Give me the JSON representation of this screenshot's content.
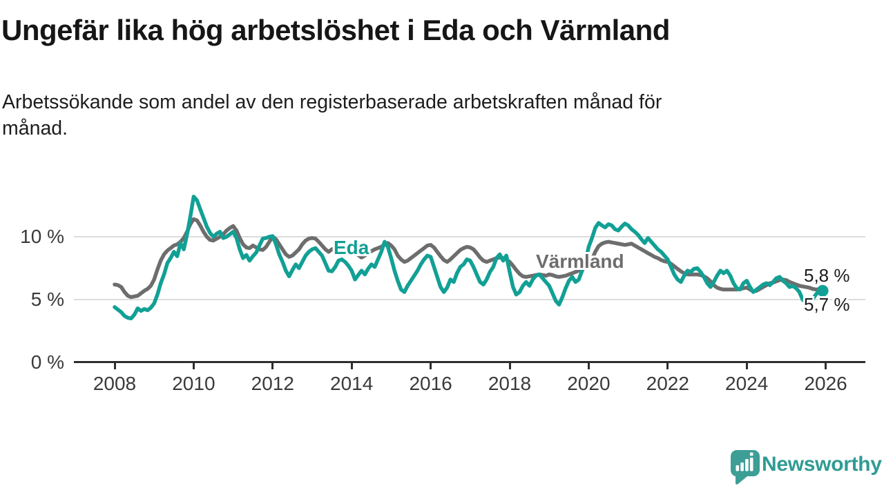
{
  "title": "Ungefär lika hög arbetslöshet i Eda och Värmland",
  "subtitle": {
    "line1": "Arbetssökande som andel av den registerbaserade arbetskraften månad för",
    "line2": "månad."
  },
  "branding": {
    "logo_text": "Newsworthy",
    "logo_icon": "bar-chart-speech-bubble",
    "logo_color": "#3d9e96",
    "text_color": "#2f9c93"
  },
  "colors": {
    "eda_line": "#12a095",
    "varmland_line": "#6d6d6d",
    "gridline": "#dcdcdc",
    "axis": "#2d2d2d",
    "text": "#1d1d1d"
  },
  "chart_data": {
    "type": "line",
    "title": "Ungefär lika hög arbetslöshet i Eda och Värmland",
    "unit": "%",
    "x_start_year": 2008,
    "points_per_year": 12,
    "x_end_label_month": "nov 2025",
    "ylim": [
      0,
      14
    ],
    "grid": "horizontal",
    "legend_position": "inline-labels",
    "x_ticks": [
      2008,
      2010,
      2012,
      2014,
      2016,
      2018,
      2020,
      2022,
      2024,
      2026
    ],
    "y_ticks": [
      {
        "value": 0,
        "label": "0 %"
      },
      {
        "value": 5,
        "label": "5 %"
      },
      {
        "value": 10,
        "label": "10 %"
      }
    ],
    "series": [
      {
        "name": "Värmland",
        "label_text": "Värmland",
        "color": "#6d6d6d",
        "endpoint_dot": false,
        "final_value": 5.8,
        "values": [
          6.2,
          6.15,
          6.0,
          5.6,
          5.3,
          5.2,
          5.25,
          5.3,
          5.5,
          5.7,
          5.85,
          6.1,
          6.6,
          7.4,
          8.1,
          8.6,
          8.9,
          9.1,
          9.3,
          9.4,
          9.6,
          9.9,
          10.4,
          11.0,
          11.4,
          11.3,
          10.9,
          10.4,
          10.0,
          9.75,
          9.7,
          9.85,
          10.0,
          10.2,
          10.5,
          10.7,
          10.85,
          10.5,
          9.9,
          9.4,
          9.15,
          9.1,
          9.3,
          9.15,
          9.0,
          8.95,
          9.2,
          9.6,
          10.0,
          9.8,
          9.4,
          9.0,
          8.6,
          8.4,
          8.5,
          8.75,
          9.0,
          9.4,
          9.7,
          9.85,
          9.9,
          9.85,
          9.6,
          9.3,
          9.0,
          8.8,
          9.0,
          9.1,
          8.85,
          8.7,
          8.8,
          8.9,
          9.0,
          8.8,
          8.55,
          8.35,
          8.5,
          8.7,
          8.85,
          9.0,
          9.1,
          9.2,
          9.4,
          9.5,
          9.3,
          9.0,
          8.5,
          8.2,
          8.0,
          8.1,
          8.3,
          8.5,
          8.7,
          8.9,
          9.1,
          9.3,
          9.35,
          9.15,
          8.8,
          8.45,
          8.15,
          8.0,
          8.2,
          8.45,
          8.7,
          8.95,
          9.1,
          9.2,
          9.15,
          9.0,
          8.7,
          8.35,
          8.1,
          8.0,
          8.1,
          8.2,
          8.3,
          8.35,
          8.3,
          8.2,
          8.0,
          7.7,
          7.35,
          7.05,
          6.85,
          6.8,
          6.85,
          6.9,
          6.95,
          7.0,
          6.95,
          6.9,
          7.0,
          6.95,
          6.85,
          6.8,
          6.85,
          6.9,
          7.0,
          7.1,
          7.2,
          7.3,
          7.4,
          7.55,
          7.8,
          8.2,
          8.8,
          9.25,
          9.45,
          9.55,
          9.6,
          9.55,
          9.5,
          9.45,
          9.4,
          9.35,
          9.4,
          9.45,
          9.3,
          9.15,
          9.0,
          8.85,
          8.7,
          8.55,
          8.4,
          8.3,
          8.15,
          8.05,
          8.0,
          7.85,
          7.65,
          7.45,
          7.25,
          7.1,
          7.0,
          7.0,
          7.0,
          7.0,
          6.95,
          6.85,
          6.7,
          6.45,
          6.15,
          5.95,
          5.85,
          5.8,
          5.8,
          5.8,
          5.8,
          5.8,
          5.85,
          5.9,
          5.95,
          5.8,
          5.65,
          5.7,
          5.85,
          6.0,
          6.15,
          6.3,
          6.35,
          6.45,
          6.55,
          6.6,
          6.55,
          6.4,
          6.3,
          6.2,
          6.1,
          6.05,
          6.0,
          5.95,
          5.85,
          5.8,
          5.8
        ]
      },
      {
        "name": "Eda",
        "label_text": "Eda",
        "color": "#12a095",
        "endpoint_dot": true,
        "final_value": 5.7,
        "values": [
          4.4,
          4.2,
          4.0,
          3.7,
          3.55,
          3.5,
          3.8,
          4.3,
          4.1,
          4.25,
          4.15,
          4.35,
          4.7,
          5.4,
          6.3,
          7.0,
          7.9,
          8.3,
          8.8,
          8.45,
          9.5,
          9.0,
          10.2,
          11.6,
          13.2,
          12.9,
          12.2,
          11.5,
          10.8,
          10.3,
          10.0,
          10.25,
          10.4,
          9.9,
          10.0,
          10.2,
          10.4,
          9.9,
          9.0,
          8.3,
          8.55,
          8.1,
          8.45,
          8.75,
          9.3,
          9.85,
          9.9,
          10.0,
          10.05,
          9.4,
          8.6,
          8.0,
          7.3,
          6.85,
          7.35,
          7.8,
          7.5,
          8.0,
          8.5,
          8.8,
          9.0,
          9.1,
          8.8,
          8.5,
          7.9,
          7.3,
          7.25,
          7.6,
          8.1,
          8.2,
          8.0,
          7.7,
          7.3,
          6.6,
          6.95,
          7.3,
          7.0,
          7.45,
          7.8,
          7.6,
          8.2,
          8.8,
          9.6,
          9.2,
          8.3,
          7.3,
          6.5,
          5.8,
          5.6,
          6.1,
          6.5,
          6.9,
          7.3,
          7.8,
          8.2,
          8.5,
          8.4,
          7.6,
          6.8,
          6.0,
          5.6,
          5.95,
          6.6,
          6.4,
          7.1,
          7.6,
          7.8,
          8.2,
          8.1,
          7.6,
          7.0,
          6.4,
          6.2,
          6.6,
          7.2,
          7.6,
          8.3,
          8.6,
          8.1,
          8.5,
          7.2,
          6.0,
          5.4,
          5.6,
          6.1,
          6.4,
          6.1,
          6.6,
          6.9,
          7.0,
          6.7,
          6.4,
          6.1,
          5.5,
          4.9,
          4.6,
          5.2,
          5.9,
          6.5,
          6.8,
          6.4,
          6.6,
          7.3,
          8.0,
          9.2,
          9.9,
          10.7,
          11.1,
          10.9,
          10.75,
          11.0,
          10.9,
          10.6,
          10.5,
          10.8,
          11.05,
          10.9,
          10.6,
          10.4,
          10.15,
          9.8,
          9.5,
          9.9,
          9.6,
          9.3,
          9.0,
          8.8,
          8.5,
          8.2,
          7.6,
          7.0,
          6.6,
          6.4,
          6.9,
          7.3,
          7.2,
          7.45,
          7.5,
          7.2,
          6.8,
          6.3,
          6.0,
          6.4,
          6.9,
          7.3,
          7.1,
          7.3,
          6.9,
          6.3,
          5.9,
          5.8,
          6.3,
          6.5,
          6.0,
          5.6,
          5.8,
          6.0,
          6.2,
          6.3,
          6.15,
          6.4,
          6.7,
          6.8,
          6.5,
          6.3,
          6.0,
          6.1,
          5.9,
          5.6,
          5.0,
          4.7,
          4.6,
          5.0,
          5.4,
          5.7
        ]
      }
    ],
    "end_labels": [
      {
        "series": "Värmland",
        "text": "5,8 %"
      },
      {
        "series": "Eda",
        "text": "5,7 %"
      }
    ]
  }
}
